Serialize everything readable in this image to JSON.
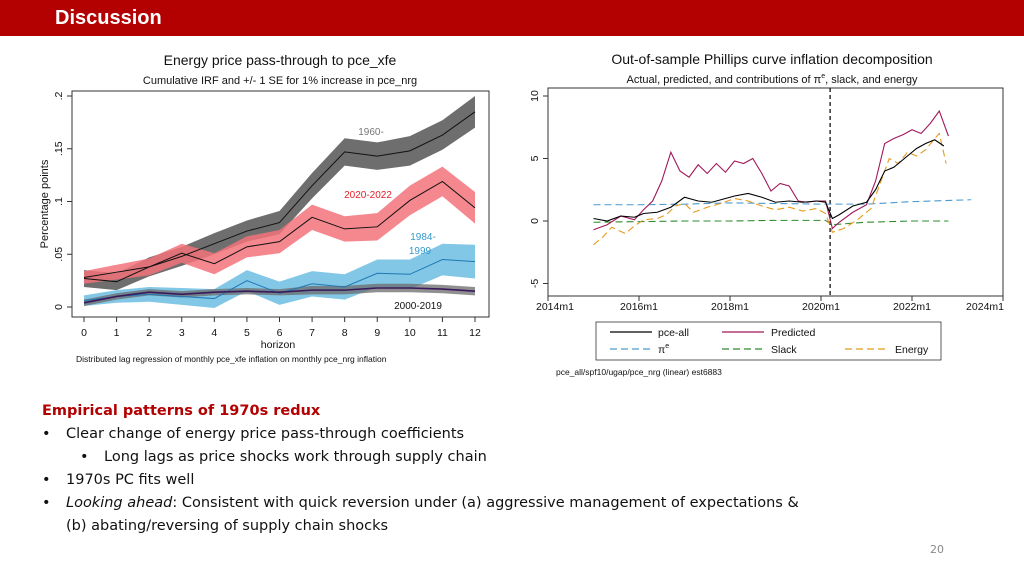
{
  "header": {
    "title": "Discussion"
  },
  "colors": {
    "banner": "#b30000",
    "heading": "#b30000"
  },
  "chart_data": [
    {
      "type": "line",
      "title": "Energy price pass-through to pce_xfe",
      "subtitle": "Cumulative IRF and +/- 1 SE for 1% increase in pce_nrg",
      "xlabel": "horizon",
      "ylabel": "Percentage points",
      "note": "Distributed lag regression of monthly pce_xfe inflation on monthly pce_nrg inflation",
      "x_ticks": [
        "0",
        "1",
        "2",
        "3",
        "4",
        "5",
        "6",
        "7",
        "8",
        "9",
        "10",
        "11",
        "12"
      ],
      "y_ticks": [
        "0",
        ".05",
        ".1",
        ".15",
        ".2"
      ],
      "xlim": [
        0,
        12
      ],
      "ylim": [
        0,
        0.2
      ],
      "grid": false,
      "x": [
        0,
        1,
        2,
        3,
        4,
        5,
        6,
        7,
        8,
        9,
        10,
        11,
        12
      ],
      "series": [
        {
          "name": "1960-",
          "color": "#7a7a7a",
          "values": [
            0.027,
            0.024,
            0.038,
            0.048,
            0.06,
            0.072,
            0.08,
            0.115,
            0.147,
            0.143,
            0.148,
            0.163,
            0.185
          ],
          "se": [
            0.008,
            0.008,
            0.009,
            0.009,
            0.01,
            0.01,
            0.011,
            0.012,
            0.013,
            0.013,
            0.014,
            0.014,
            0.015
          ]
        },
        {
          "name": "2020-2022",
          "color": "#e8202a",
          "values": [
            0.028,
            0.033,
            0.038,
            0.051,
            0.041,
            0.057,
            0.062,
            0.085,
            0.074,
            0.076,
            0.101,
            0.119,
            0.094
          ],
          "se": [
            0.006,
            0.007,
            0.008,
            0.009,
            0.01,
            0.01,
            0.011,
            0.012,
            0.012,
            0.013,
            0.014,
            0.014,
            0.015
          ]
        },
        {
          "name": "1984-1999",
          "color": "#3399cc",
          "values": [
            0.006,
            0.01,
            0.012,
            0.01,
            0.008,
            0.025,
            0.013,
            0.022,
            0.019,
            0.032,
            0.031,
            0.045,
            0.043
          ],
          "se": [
            0.005,
            0.006,
            0.007,
            0.008,
            0.009,
            0.01,
            0.011,
            0.012,
            0.012,
            0.013,
            0.014,
            0.015,
            0.016
          ]
        },
        {
          "name": "2000-2019",
          "color": "#000000",
          "values": [
            0.004,
            0.01,
            0.014,
            0.012,
            0.014,
            0.015,
            0.014,
            0.016,
            0.016,
            0.018,
            0.018,
            0.017,
            0.015
          ],
          "se": [
            0.003,
            0.003,
            0.003,
            0.003,
            0.003,
            0.003,
            0.003,
            0.004,
            0.004,
            0.004,
            0.004,
            0.004,
            0.004
          ]
        }
      ]
    },
    {
      "type": "line",
      "title": "Out-of-sample Phillips curve inflation decomposition",
      "subtitle_main": "Actual, predicted, and contributions of π",
      "subtitle_sup": "e",
      "subtitle_tail": ", slack, and energy",
      "note": "pce_all/spf10/ugap/pce_nrg (linear) est6883",
      "x_ticks": [
        "2014m1",
        "2016m1",
        "2018m1",
        "2020m1",
        "2022m1",
        "2024m1"
      ],
      "y_ticks": [
        "-5",
        "0",
        "5",
        "10"
      ],
      "xlim": [
        2014.0,
        2024.0
      ],
      "ylim": [
        -6,
        10
      ],
      "grid": false,
      "vline_x": 2020.2,
      "series": [
        {
          "name": "pce-all",
          "color": "#000000",
          "dash": "solid",
          "points": [
            [
              2015.0,
              0.2
            ],
            [
              2015.3,
              0.0
            ],
            [
              2015.6,
              0.4
            ],
            [
              2015.9,
              0.3
            ],
            [
              2016.1,
              0.6
            ],
            [
              2016.4,
              0.7
            ],
            [
              2016.7,
              1.1
            ],
            [
              2017.0,
              1.9
            ],
            [
              2017.3,
              1.6
            ],
            [
              2017.6,
              1.5
            ],
            [
              2017.9,
              1.8
            ],
            [
              2018.1,
              2.0
            ],
            [
              2018.4,
              2.2
            ],
            [
              2018.7,
              1.9
            ],
            [
              2019.0,
              1.5
            ],
            [
              2019.3,
              1.6
            ],
            [
              2019.6,
              1.5
            ],
            [
              2019.9,
              1.6
            ],
            [
              2020.1,
              1.5
            ],
            [
              2020.25,
              0.2
            ],
            [
              2020.4,
              0.5
            ],
            [
              2020.7,
              1.2
            ],
            [
              2021.0,
              1.5
            ],
            [
              2021.2,
              2.5
            ],
            [
              2021.4,
              4.0
            ],
            [
              2021.6,
              4.3
            ],
            [
              2021.9,
              5.2
            ],
            [
              2022.1,
              5.8
            ],
            [
              2022.3,
              6.2
            ],
            [
              2022.5,
              6.5
            ],
            [
              2022.7,
              6.0
            ]
          ]
        },
        {
          "name": "Predicted",
          "color": "#a0185a",
          "dash": "solid",
          "points": [
            [
              2015.0,
              -0.7
            ],
            [
              2015.3,
              -0.3
            ],
            [
              2015.6,
              0.4
            ],
            [
              2015.9,
              0.1
            ],
            [
              2016.1,
              0.9
            ],
            [
              2016.3,
              1.6
            ],
            [
              2016.5,
              3.2
            ],
            [
              2016.7,
              5.5
            ],
            [
              2016.9,
              4.0
            ],
            [
              2017.1,
              3.5
            ],
            [
              2017.3,
              4.5
            ],
            [
              2017.5,
              3.8
            ],
            [
              2017.7,
              4.6
            ],
            [
              2017.9,
              3.9
            ],
            [
              2018.1,
              4.8
            ],
            [
              2018.3,
              4.6
            ],
            [
              2018.5,
              5.0
            ],
            [
              2018.7,
              3.8
            ],
            [
              2018.9,
              2.4
            ],
            [
              2019.1,
              3.0
            ],
            [
              2019.3,
              2.8
            ],
            [
              2019.5,
              1.6
            ],
            [
              2019.7,
              1.5
            ],
            [
              2019.9,
              1.6
            ],
            [
              2020.1,
              1.6
            ],
            [
              2020.25,
              -0.6
            ],
            [
              2020.4,
              -0.1
            ],
            [
              2020.7,
              0.7
            ],
            [
              2021.0,
              1.3
            ],
            [
              2021.2,
              3.2
            ],
            [
              2021.4,
              6.2
            ],
            [
              2021.6,
              6.6
            ],
            [
              2021.8,
              6.9
            ],
            [
              2022.0,
              7.3
            ],
            [
              2022.2,
              7.0
            ],
            [
              2022.4,
              7.8
            ],
            [
              2022.6,
              8.8
            ],
            [
              2022.8,
              6.8
            ]
          ]
        },
        {
          "name": "π",
          "legend_sup": "e",
          "color": "#4a9ad0",
          "dash": "long",
          "points": [
            [
              2015.0,
              1.3
            ],
            [
              2016.0,
              1.3
            ],
            [
              2017.0,
              1.35
            ],
            [
              2018.0,
              1.45
            ],
            [
              2019.0,
              1.4
            ],
            [
              2020.0,
              1.35
            ],
            [
              2021.0,
              1.35
            ],
            [
              2022.0,
              1.55
            ],
            [
              2023.3,
              1.7
            ]
          ]
        },
        {
          "name": "Slack",
          "color": "#2e8b2e",
          "dash": "long",
          "points": [
            [
              2015.0,
              -0.1
            ],
            [
              2016.0,
              -0.05
            ],
            [
              2017.0,
              0.0
            ],
            [
              2018.0,
              0.0
            ],
            [
              2019.0,
              0.05
            ],
            [
              2020.1,
              0.05
            ],
            [
              2020.25,
              -0.3
            ],
            [
              2020.6,
              -0.2
            ],
            [
              2021.0,
              -0.1
            ],
            [
              2022.0,
              0.0
            ],
            [
              2022.8,
              0.0
            ]
          ]
        },
        {
          "name": "Energy",
          "color": "#e59a1e",
          "dash": "long",
          "points": [
            [
              2015.0,
              -1.9
            ],
            [
              2015.2,
              -1.3
            ],
            [
              2015.4,
              -0.5
            ],
            [
              2015.7,
              -1.0
            ],
            [
              2015.9,
              -0.4
            ],
            [
              2016.1,
              0.1
            ],
            [
              2016.4,
              0.2
            ],
            [
              2016.6,
              0.5
            ],
            [
              2016.8,
              1.2
            ],
            [
              2017.0,
              1.4
            ],
            [
              2017.2,
              0.7
            ],
            [
              2017.5,
              1.1
            ],
            [
              2017.8,
              1.4
            ],
            [
              2018.1,
              1.8
            ],
            [
              2018.4,
              1.6
            ],
            [
              2018.7,
              1.2
            ],
            [
              2019.0,
              0.9
            ],
            [
              2019.3,
              1.1
            ],
            [
              2019.6,
              0.8
            ],
            [
              2019.9,
              1.0
            ],
            [
              2020.1,
              0.6
            ],
            [
              2020.25,
              -0.9
            ],
            [
              2020.5,
              -0.6
            ],
            [
              2020.8,
              0.1
            ],
            [
              2021.1,
              1.0
            ],
            [
              2021.3,
              3.0
            ],
            [
              2021.5,
              5.0
            ],
            [
              2021.7,
              4.6
            ],
            [
              2021.9,
              5.5
            ],
            [
              2022.1,
              5.2
            ],
            [
              2022.3,
              5.7
            ],
            [
              2022.5,
              6.6
            ],
            [
              2022.6,
              7.0
            ],
            [
              2022.75,
              4.6
            ]
          ]
        }
      ]
    }
  ],
  "bullets": {
    "heading": "Empirical patterns of 1970s redux",
    "b1": "Clear change of energy price pass-through coefficients",
    "b1a": "Long lags as price shocks work through supply chain",
    "b2": "1970s PC fits well",
    "b3_italic": "Looking ahead",
    "b3_rest": ": Consistent with quick reversion under (a) aggressive management of expectations &",
    "b3_cont": "(b) abating/reversing of supply chain shocks",
    "bullet_char": "•"
  },
  "page_number": "20"
}
